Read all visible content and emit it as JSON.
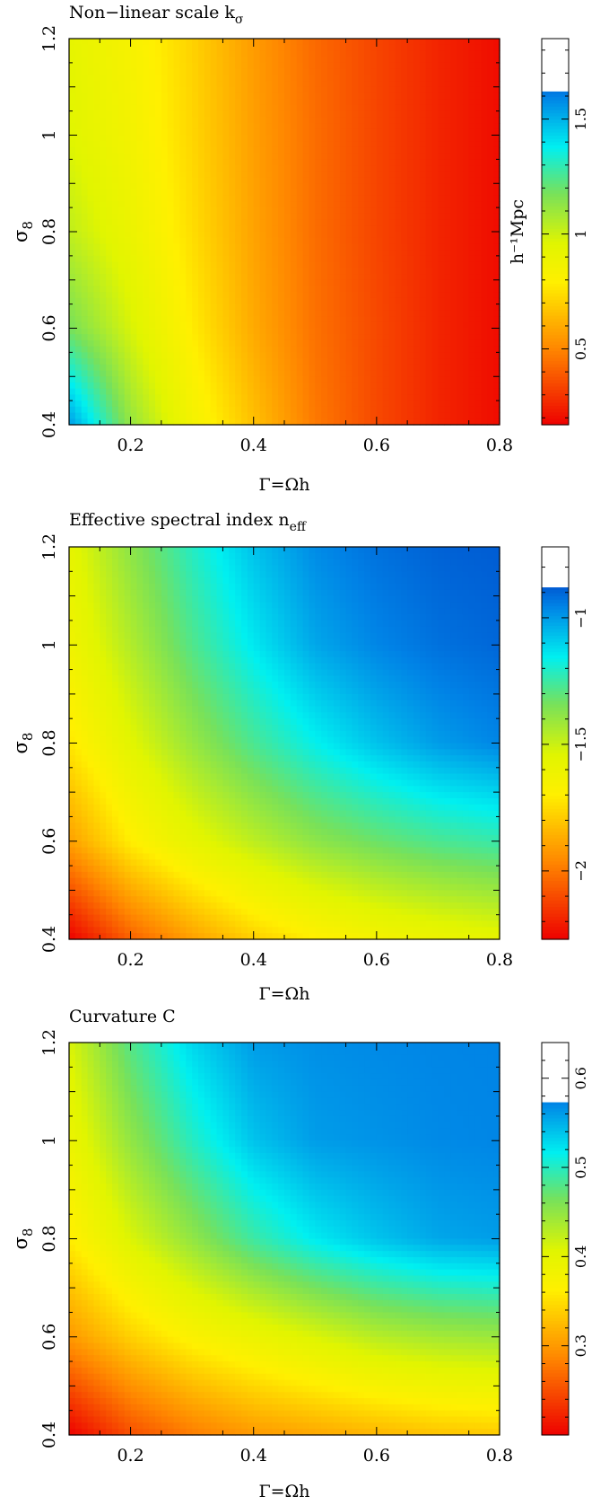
{
  "chart_data": [
    {
      "type": "heatmap",
      "title": "Non−linear scale k",
      "title_subscript": "σ",
      "xlabel": "Γ=Ωh",
      "ylabel": "σ",
      "ylabel_subscript": "8",
      "xlim": [
        0.1,
        0.8
      ],
      "ylim": [
        0.4,
        1.2
      ],
      "x_ticks": [
        0.2,
        0.4,
        0.6,
        0.8
      ],
      "x_tick_labels": [
        "0.2",
        "0.4",
        "0.6",
        "0.8"
      ],
      "y_ticks": [
        0.4,
        0.6,
        0.8,
        1.0,
        1.2
      ],
      "y_tick_labels": [
        "0.4",
        "0.6",
        "0.8",
        "1",
        "1.2"
      ],
      "colorbar": {
        "label": "h⁻¹Mpc",
        "range": [
          0.17,
          1.85
        ],
        "data_max": 1.62,
        "ticks": [
          0.5,
          1.0,
          1.5
        ],
        "tick_labels": [
          "0.5",
          "1",
          "1.5"
        ]
      },
      "grid_samples": {
        "x": [
          0.1,
          0.2,
          0.3,
          0.4,
          0.5,
          0.6,
          0.7,
          0.8
        ],
        "y": [
          0.4,
          0.6,
          0.8,
          1.0,
          1.2
        ],
        "values": [
          [
            1.55,
            1.12,
            0.86,
            0.66,
            0.47,
            0.35,
            0.26,
            0.2
          ],
          [
            1.18,
            0.98,
            0.78,
            0.6,
            0.45,
            0.35,
            0.26,
            0.2
          ],
          [
            1.03,
            0.9,
            0.74,
            0.58,
            0.44,
            0.34,
            0.26,
            0.2
          ],
          [
            0.96,
            0.86,
            0.72,
            0.57,
            0.44,
            0.34,
            0.26,
            0.2
          ],
          [
            0.93,
            0.84,
            0.71,
            0.56,
            0.43,
            0.34,
            0.26,
            0.2
          ]
        ]
      }
    },
    {
      "type": "heatmap",
      "title": "Effective spectral index n",
      "title_subscript": "eff",
      "xlabel": "Γ=Ωh",
      "ylabel": "σ",
      "ylabel_subscript": "8",
      "xlim": [
        0.1,
        0.8
      ],
      "ylim": [
        0.4,
        1.2
      ],
      "x_ticks": [
        0.2,
        0.4,
        0.6,
        0.8
      ],
      "x_tick_labels": [
        "0.2",
        "0.4",
        "0.6",
        "0.8"
      ],
      "y_ticks": [
        0.4,
        0.6,
        0.8,
        1.0,
        1.2
      ],
      "y_tick_labels": [
        "0.4",
        "0.6",
        "0.8",
        "1",
        "1.2"
      ],
      "colorbar": {
        "label": "",
        "range": [
          -2.27,
          -0.72
        ],
        "data_max": -0.88,
        "ticks": [
          -2.0,
          -1.5,
          -1.0
        ],
        "tick_labels": [
          "−2",
          "−1.5",
          "−1"
        ]
      },
      "grid_samples": {
        "x": [
          0.1,
          0.2,
          0.3,
          0.4,
          0.5,
          0.6,
          0.7,
          0.8
        ],
        "y": [
          0.4,
          0.6,
          0.8,
          1.0,
          1.2
        ],
        "values": [
          [
            -2.27,
            -2.05,
            -1.9,
            -1.78,
            -1.7,
            -1.64,
            -1.6,
            -1.57
          ],
          [
            -1.9,
            -1.7,
            -1.57,
            -1.47,
            -1.38,
            -1.32,
            -1.27,
            -1.24
          ],
          [
            -1.72,
            -1.55,
            -1.4,
            -1.27,
            -1.16,
            -1.07,
            -1.0,
            -0.96
          ],
          [
            -1.62,
            -1.45,
            -1.28,
            -1.14,
            -1.02,
            -0.96,
            -0.92,
            -0.9
          ],
          [
            -1.57,
            -1.38,
            -1.21,
            -1.07,
            -0.97,
            -0.92,
            -0.89,
            -0.88
          ]
        ]
      }
    },
    {
      "type": "heatmap",
      "title": "Curvature C",
      "title_subscript": "",
      "xlabel": "Γ=Ωh",
      "ylabel": "σ",
      "ylabel_subscript": "8",
      "xlim": [
        0.1,
        0.8
      ],
      "ylim": [
        0.4,
        1.2
      ],
      "x_ticks": [
        0.2,
        0.4,
        0.6,
        0.8
      ],
      "x_tick_labels": [
        "0.2",
        "0.4",
        "0.6",
        "0.8"
      ],
      "y_ticks": [
        0.4,
        0.6,
        0.8,
        1.0,
        1.2
      ],
      "y_tick_labels": [
        "0.4",
        "0.6",
        "0.8",
        "1",
        "1.2"
      ],
      "colorbar": {
        "label": "",
        "range": [
          0.2,
          0.64
        ],
        "data_max": 0.573,
        "ticks": [
          0.3,
          0.4,
          0.5,
          0.6
        ],
        "tick_labels": [
          "0.3",
          "0.4",
          "0.5",
          "0.6"
        ]
      },
      "grid_samples": {
        "x": [
          0.1,
          0.2,
          0.3,
          0.4,
          0.5,
          0.6,
          0.7,
          0.8
        ],
        "y": [
          0.4,
          0.6,
          0.8,
          1.0,
          1.2
        ],
        "values": [
          [
            0.2,
            0.25,
            0.28,
            0.3,
            0.31,
            0.32,
            0.33,
            0.335
          ],
          [
            0.3,
            0.34,
            0.37,
            0.39,
            0.41,
            0.43,
            0.44,
            0.445
          ],
          [
            0.36,
            0.41,
            0.45,
            0.49,
            0.52,
            0.54,
            0.555,
            0.56
          ],
          [
            0.39,
            0.45,
            0.5,
            0.54,
            0.56,
            0.565,
            0.57,
            0.572
          ],
          [
            0.41,
            0.48,
            0.53,
            0.56,
            0.567,
            0.57,
            0.572,
            0.573
          ]
        ]
      }
    }
  ]
}
